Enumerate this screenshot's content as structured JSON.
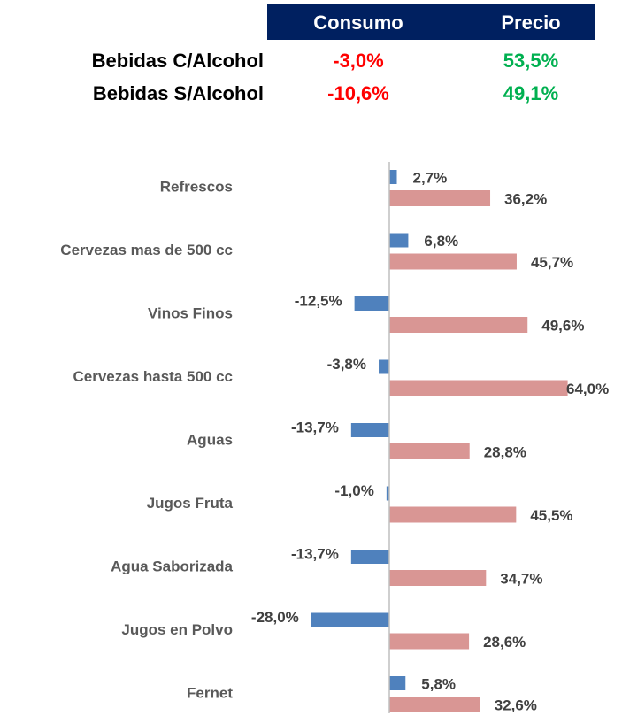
{
  "table": {
    "columns": [
      "Consumo",
      "Precio"
    ],
    "column_colors": [
      "#ff0000",
      "#00b050"
    ],
    "header_color": "#002060",
    "rows": [
      {
        "label": "Bebidas C/Alcohol",
        "values": [
          -3.0,
          53.5
        ],
        "value_labels": [
          "-3,0%",
          "53,5%"
        ]
      },
      {
        "label": "Bebidas S/Alcohol",
        "values": [
          -10.6,
          49.1
        ],
        "value_labels": [
          "-10,6%",
          "49,1%"
        ]
      }
    ]
  },
  "chart_data": {
    "type": "bar",
    "orientation": "horizontal",
    "categories": [
      "Refrescos",
      "Cervezas mas de 500 cc",
      "Vinos Finos",
      "Cervezas hasta 500 cc",
      "Aguas",
      "Jugos Fruta",
      "Agua Saborizada",
      "Jugos en Polvo",
      "Fernet"
    ],
    "xlim": [
      -30,
      70
    ],
    "series": [
      {
        "name": "Consumo",
        "color": "#4f81bd",
        "values": [
          2.7,
          6.8,
          -12.5,
          -3.8,
          -13.7,
          -1.0,
          -13.7,
          -28.0,
          5.8
        ],
        "value_labels": [
          "2,7%",
          "6,8%",
          "-12,5%",
          "-3,8%",
          "-13,7%",
          "-1,0%",
          "-13,7%",
          "-28,0%",
          "5,8%"
        ]
      },
      {
        "name": "Precio",
        "color": "#d99694",
        "values": [
          36.2,
          45.7,
          49.6,
          64.0,
          28.8,
          45.5,
          34.7,
          28.6,
          32.6
        ],
        "value_labels": [
          "36,2%",
          "45,7%",
          "49,6%",
          "64,0%",
          "28,8%",
          "45,5%",
          "34,7%",
          "28,6%",
          "32,6%"
        ]
      }
    ]
  }
}
